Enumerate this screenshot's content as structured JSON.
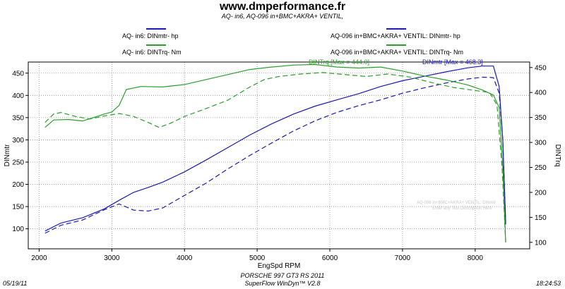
{
  "header": {
    "title": "www.dmperformance.fr",
    "subtitle": "AQ- in6, AQ-096 in+BMC+AKRA+ VENTIL,"
  },
  "legend": {
    "hp_a": "AQ- in6: DINmtr-  hp",
    "hp_b": "AQ-096 in+BMC+AKRA+ VENTIL: DINmtr-  hp",
    "nm_a": "AQ- in6: DINTrq-  Nm",
    "nm_b": "AQ-096 in+BMC+AKRA+ VENTIL: DINTrq-  Nm"
  },
  "footer": {
    "car": "PORSCHE 997 GT3 RS 2011",
    "software": "SuperFlow WinDyn™ V2.8",
    "date": "05/19/11",
    "time": "18:24:53"
  },
  "colors": {
    "hp": "#1a1ab4",
    "torque": "#2aa02a",
    "grid": "#8c8c8c",
    "watermark": "#c8c8c8"
  },
  "chart_data": {
    "type": "line",
    "xlabel": "EngSpd  RPM",
    "ylabel_left": "DINmtr",
    "ylabel_right": "DINTrq",
    "xlim": [
      1850,
      8750
    ],
    "ylim_left": [
      55,
      475
    ],
    "ylim_right": [
      87,
      461
    ],
    "x_ticks": [
      2000,
      3000,
      4000,
      5000,
      6000,
      7000,
      8000
    ],
    "y_ticks_left": [
      100,
      150,
      200,
      250,
      300,
      350,
      400,
      450
    ],
    "y_ticks_right": [
      100,
      150,
      200,
      250,
      300,
      350,
      400,
      450
    ],
    "grid": true,
    "annotations": {
      "torque_max": "DINTrq [Max = 444.0]",
      "hp_max": "DINmtr [Max = 468.3]",
      "watermark_1": "AQ-096 in+BMC+AKRA+ VENTIL: DINmtr",
      "watermark_2": "Enter any Test Description Here"
    },
    "series": [
      {
        "axis": "left",
        "style": "solid",
        "color": "#1a1ab4",
        "x": [
          2080,
          2300,
          2600,
          2900,
          3100,
          3300,
          3500,
          3700,
          4000,
          4300,
          4600,
          4900,
          5200,
          5500,
          5800,
          6100,
          6400,
          6700,
          7000,
          7300,
          7600,
          7900,
          8100,
          8250,
          8330,
          8380,
          8420
        ],
        "y": [
          95,
          113,
          125,
          145,
          164,
          182,
          193,
          205,
          228,
          255,
          283,
          311,
          336,
          358,
          376,
          390,
          404,
          420,
          433,
          443,
          453,
          462,
          466,
          466,
          420,
          300,
          115
        ]
      },
      {
        "axis": "left",
        "style": "dashed",
        "color": "#1a1ab4",
        "x": [
          2080,
          2300,
          2600,
          2900,
          3100,
          3300,
          3500,
          3700,
          4000,
          4300,
          4600,
          4900,
          5200,
          5500,
          5800,
          6100,
          6400,
          6700,
          7000,
          7300,
          7600,
          7900,
          8100,
          8250,
          8330,
          8380,
          8420
        ],
        "y": [
          90,
          108,
          120,
          143,
          156,
          142,
          140,
          147,
          175,
          203,
          235,
          265,
          293,
          320,
          343,
          362,
          377,
          390,
          405,
          417,
          428,
          437,
          441,
          440,
          405,
          300,
          110
        ]
      },
      {
        "axis": "right",
        "style": "solid",
        "color": "#2aa02a",
        "x": [
          2080,
          2200,
          2400,
          2600,
          2900,
          3000,
          3100,
          3200,
          3400,
          3700,
          4000,
          4300,
          4600,
          4900,
          5200,
          5500,
          5800,
          6100,
          6400,
          6700,
          7000,
          7300,
          7600,
          7900,
          8100,
          8250,
          8330,
          8380,
          8420
        ],
        "y": [
          330,
          345,
          346,
          343,
          357,
          361,
          374,
          406,
          412,
          411,
          416,
          426,
          436,
          446,
          451,
          455,
          456,
          451,
          449,
          451,
          443,
          433,
          425,
          415,
          405,
          395,
          370,
          250,
          100
        ]
      },
      {
        "axis": "right",
        "style": "dashed",
        "color": "#2aa02a",
        "x": [
          2080,
          2200,
          2300,
          2500,
          2700,
          2900,
          3100,
          3300,
          3500,
          3650,
          3800,
          4000,
          4300,
          4600,
          4900,
          5100,
          5300,
          5600,
          5900,
          6200,
          6500,
          6800,
          7100,
          7400,
          7700,
          8000,
          8200,
          8300,
          8370,
          8420
        ],
        "y": [
          340,
          357,
          360,
          352,
          347,
          353,
          358,
          352,
          340,
          330,
          338,
          352,
          368,
          385,
          411,
          426,
          432,
          437,
          440,
          436,
          432,
          437,
          431,
          420,
          410,
          404,
          400,
          375,
          250,
          100
        ]
      }
    ]
  }
}
